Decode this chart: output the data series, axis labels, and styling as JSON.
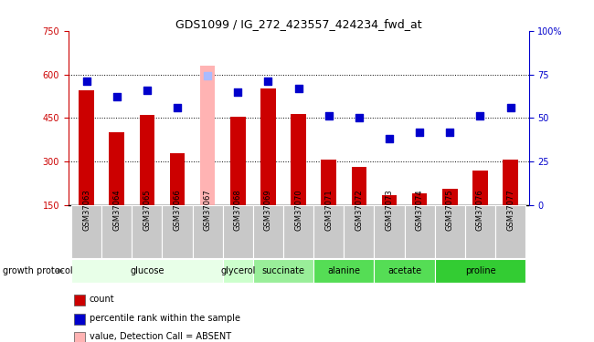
{
  "title": "GDS1099 / IG_272_423557_424234_fwd_at",
  "samples": [
    "GSM37063",
    "GSM37064",
    "GSM37065",
    "GSM37066",
    "GSM37067",
    "GSM37068",
    "GSM37069",
    "GSM37070",
    "GSM37071",
    "GSM37072",
    "GSM37073",
    "GSM37074",
    "GSM37075",
    "GSM37076",
    "GSM37077"
  ],
  "bar_values": [
    545,
    400,
    460,
    328,
    630,
    453,
    550,
    465,
    308,
    283,
    185,
    192,
    205,
    268,
    308
  ],
  "absent_index": 4,
  "percentile_values": [
    71,
    62,
    66,
    56,
    74,
    65,
    71,
    67,
    51,
    50,
    38,
    42,
    42,
    51,
    56
  ],
  "ylim_left": [
    150,
    750
  ],
  "ylim_right": [
    0,
    100
  ],
  "yticks_left": [
    150,
    300,
    450,
    600,
    750
  ],
  "yticks_right": [
    0,
    25,
    50,
    75,
    100
  ],
  "group_defs": [
    {
      "label": "glucose",
      "cols": [
        0,
        1,
        2,
        3,
        4
      ],
      "color": "#e8ffe8"
    },
    {
      "label": "glycerol",
      "cols": [
        5
      ],
      "color": "#ccffcc"
    },
    {
      "label": "succinate",
      "cols": [
        6,
        7
      ],
      "color": "#99ee99"
    },
    {
      "label": "alanine",
      "cols": [
        8,
        9
      ],
      "color": "#55dd55"
    },
    {
      "label": "acetate",
      "cols": [
        10,
        11
      ],
      "color": "#55dd55"
    },
    {
      "label": "proline",
      "cols": [
        12,
        13,
        14
      ],
      "color": "#33cc33"
    }
  ],
  "bar_width": 0.5,
  "bar_color": "#cc0000",
  "absent_bar_color": "#ffb3b3",
  "dot_color": "#0000cc",
  "dot_size": 30,
  "absent_dot_color": "#aabbff",
  "left_axis_color": "#cc0000",
  "right_axis_color": "#0000cc",
  "grid_yticks": [
    300,
    450,
    600
  ],
  "sample_row_color": "#c8c8c8",
  "growth_protocol_label": "growth protocol",
  "legend_items": [
    {
      "color": "#cc0000",
      "label": "count"
    },
    {
      "color": "#0000cc",
      "label": "percentile rank within the sample"
    },
    {
      "color": "#ffb3b3",
      "label": "value, Detection Call = ABSENT"
    },
    {
      "color": "#aabbff",
      "label": "rank, Detection Call = ABSENT"
    }
  ]
}
